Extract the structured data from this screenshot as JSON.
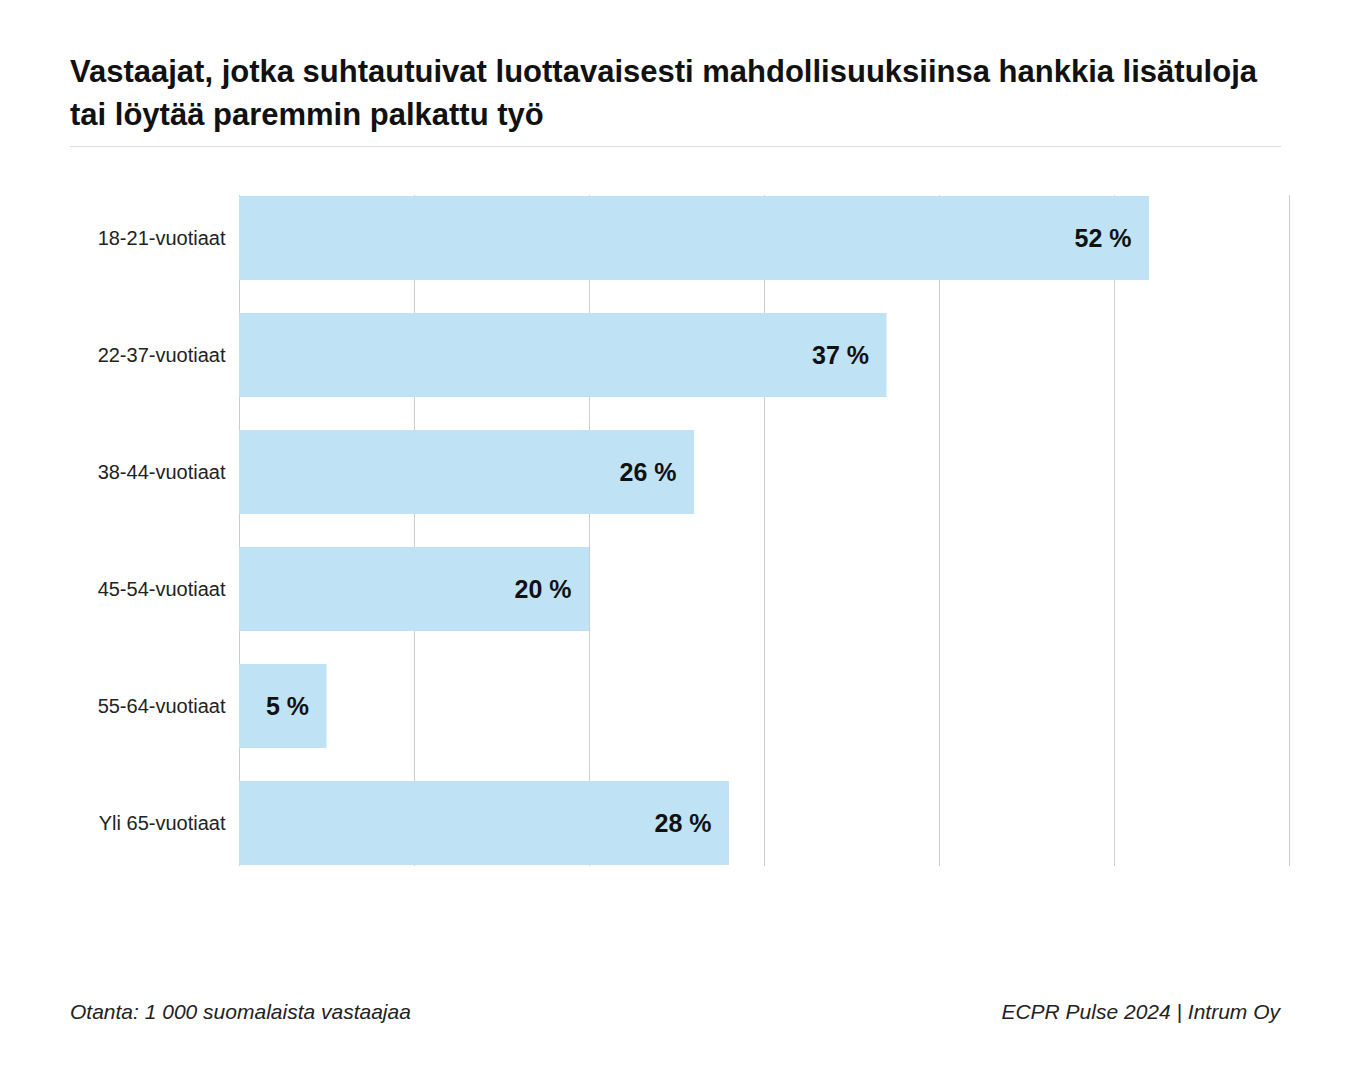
{
  "chart_data": {
    "type": "bar",
    "orientation": "horizontal",
    "title": "Vastaajat, jotka suhtautuivat luottavaisesti mahdollisuuksiinsa hankkia lisätuloja tai löytää paremmin palkattu työ",
    "categories": [
      "18-21-vuotiaat",
      "22-37-vuotiaat",
      "38-44-vuotiaat",
      "45-54-vuotiaat",
      "55-64-vuotiaat",
      "Yli 65-vuotiaat"
    ],
    "values": [
      52,
      37,
      26,
      20,
      5,
      28
    ],
    "value_labels": [
      "52 %",
      "37 %",
      "26 %",
      "20 %",
      "5 %",
      "28 %"
    ],
    "color": "#bfe2f5",
    "xlim": [
      0,
      60
    ],
    "xticks": [
      0,
      10,
      20,
      30,
      40,
      50,
      60
    ],
    "grid": true,
    "data_labels": true,
    "tick_labels": "y",
    "caption": "Otanta: 1 000 suomalaista vastaajaa",
    "source": "ECPR Pulse 2024 | Intrum Oy"
  }
}
